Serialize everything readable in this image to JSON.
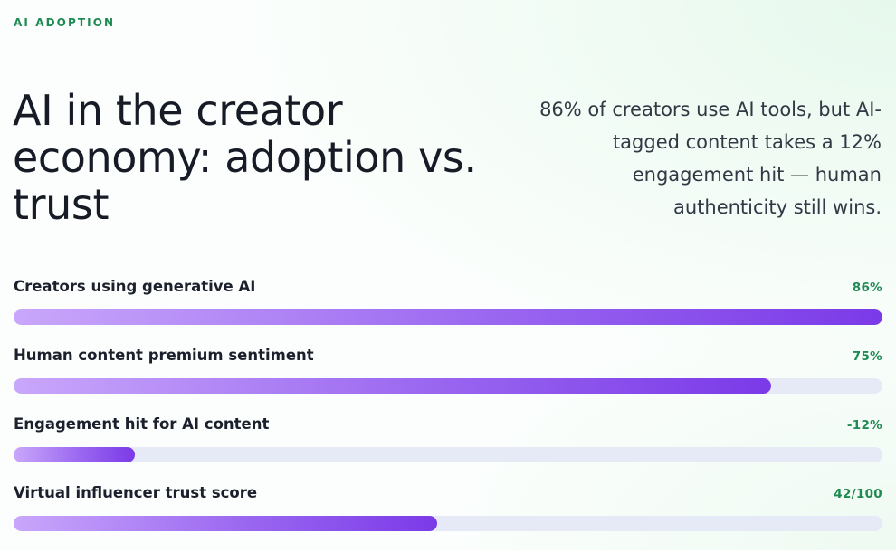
{
  "eyebrow": "AI ADOPTION",
  "title": "AI in the creator economy: adoption vs. trust",
  "summary": "86% of creators use AI tools, but AI-tagged content takes a 12% engagement hit — human authenticity still wins.",
  "colors": {
    "accent": "#1f8a52",
    "bar_start": "#c9a7fb",
    "bar_end": "#7b3ae8",
    "track": "#e6e9f6"
  },
  "metrics": [
    {
      "label": "Creators using generative AI",
      "value": "86%",
      "fill_fraction": 1.0
    },
    {
      "label": "Human content premium sentiment",
      "value": "75%",
      "fill_fraction": 0.872
    },
    {
      "label": "Engagement hit for AI content",
      "value": "-12%",
      "fill_fraction": 0.14
    },
    {
      "label": "Virtual influencer trust score",
      "value": "42/100",
      "fill_fraction": 0.488
    }
  ]
}
